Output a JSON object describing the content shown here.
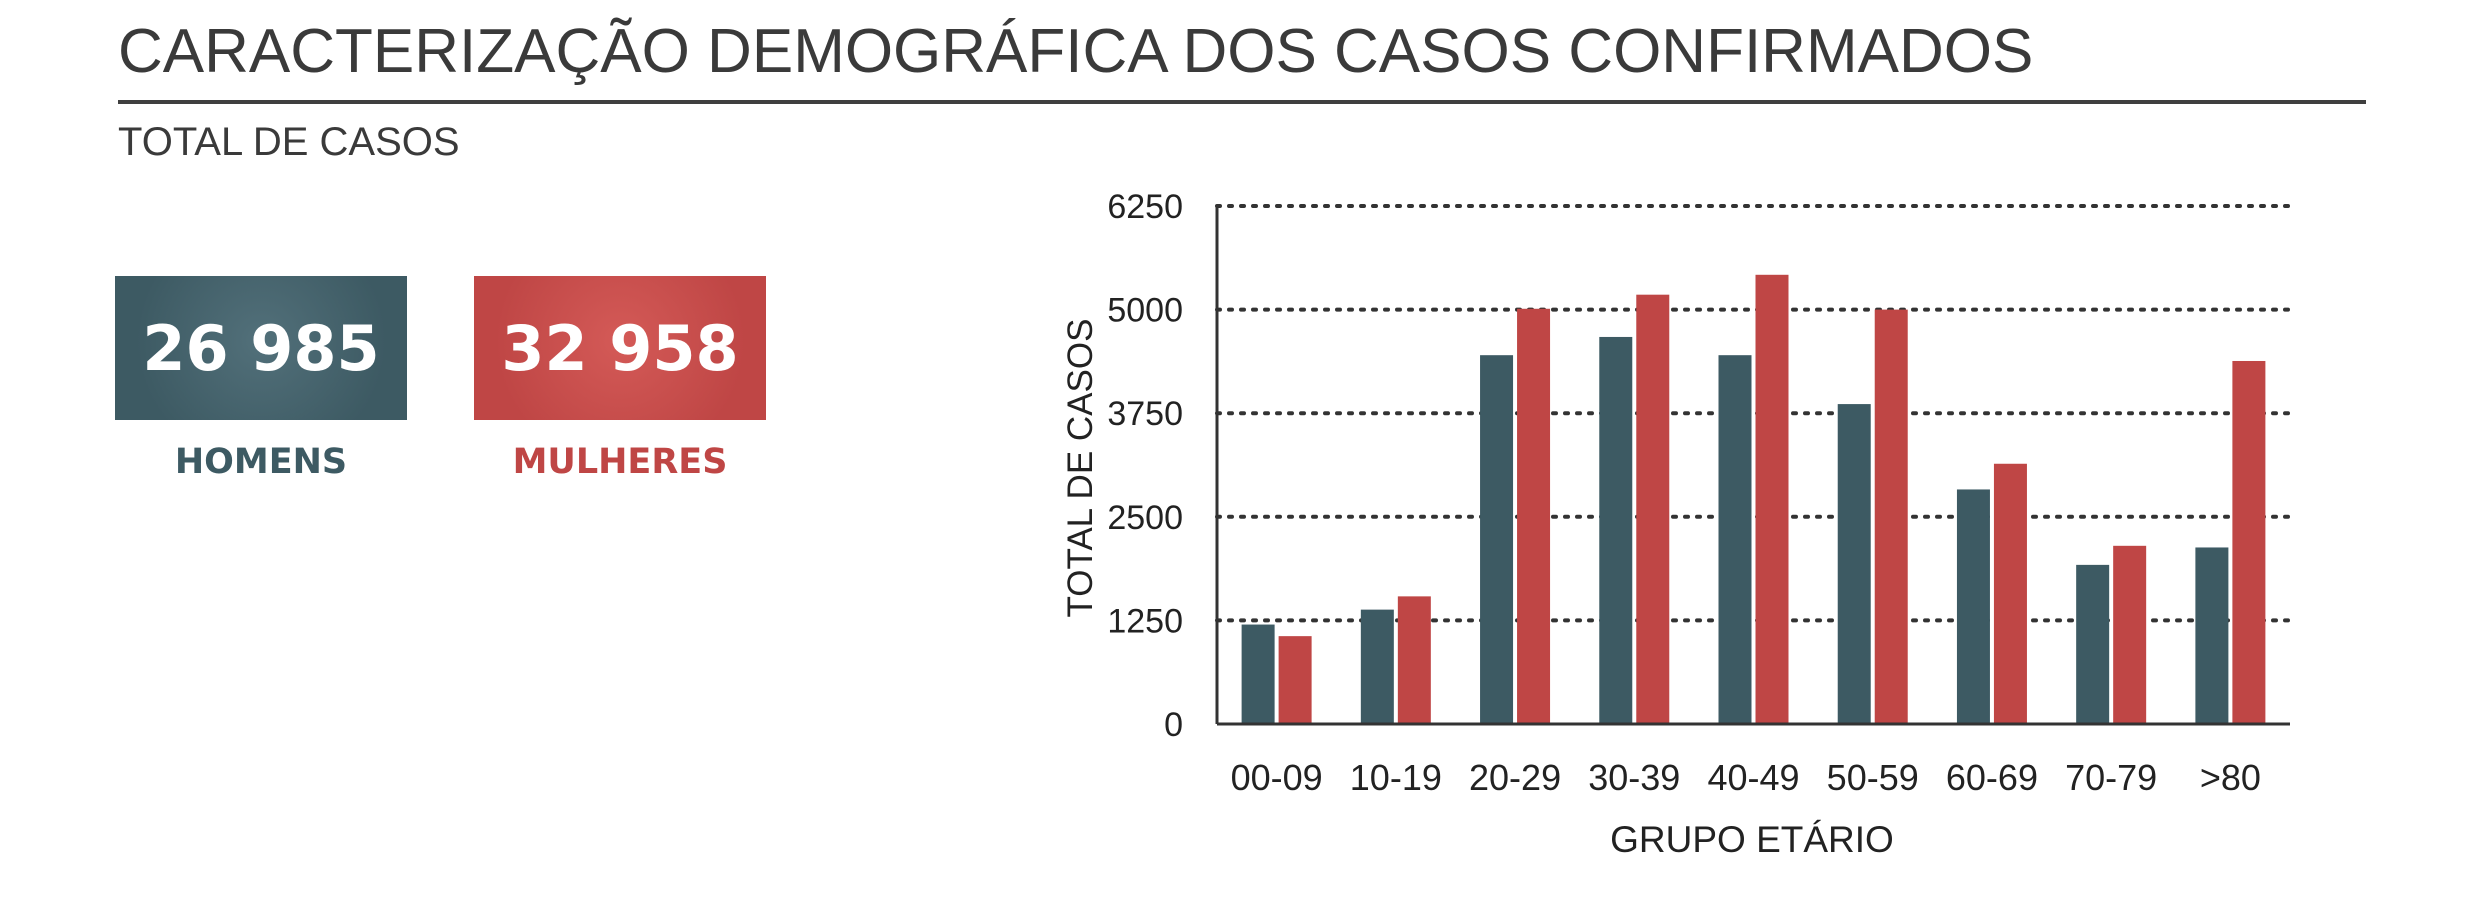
{
  "header": {
    "title": "CARACTERIZAÇÃO DEMOGRÁFICA DOS CASOS CONFIRMADOS",
    "subtitle": "TOTAL DE CASOS"
  },
  "kpis": {
    "men": {
      "value": "26 985",
      "label": "HOMENS",
      "color": "#3d5a63"
    },
    "women": {
      "value": "32 958",
      "label": "MULHERES",
      "color": "#bf4645"
    }
  },
  "chart_data": {
    "type": "bar",
    "categories": [
      "00-09",
      "10-19",
      "20-29",
      "30-39",
      "40-49",
      "50-59",
      "60-69",
      "70-79",
      ">80"
    ],
    "series": [
      {
        "values": [
          1200,
          1380,
          4450,
          4670,
          4450,
          3860,
          2830,
          1920,
          2130
        ],
        "color": "#3d5a63"
      },
      {
        "values": [
          1060,
          1540,
          5010,
          5180,
          5420,
          5000,
          3140,
          2150,
          4380
        ],
        "color": "#bf4645"
      }
    ],
    "xlabel": "GRUPO ETÁRIO",
    "ylabel": "TOTAL DE CASOS",
    "ylim": [
      0,
      6250
    ],
    "yticks": [
      "0",
      "1250",
      "2500",
      "3750",
      "5000",
      "6250"
    ],
    "grid": true,
    "legend": "none"
  }
}
